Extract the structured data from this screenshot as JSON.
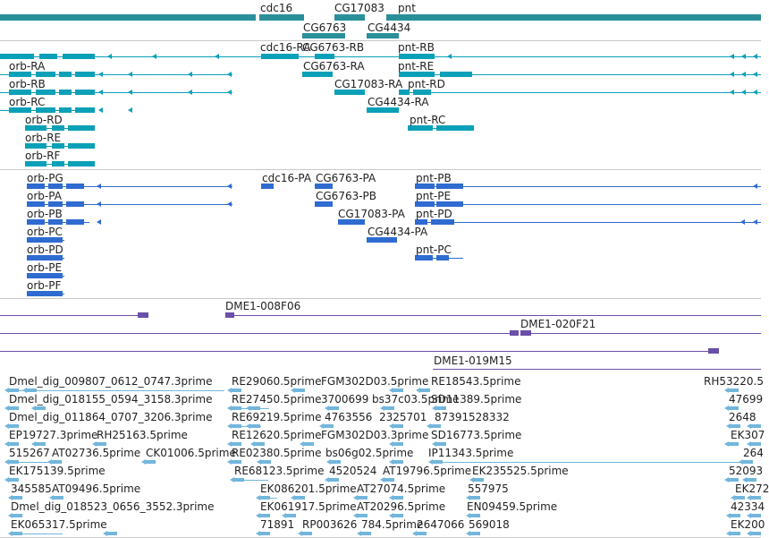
{
  "colors": {
    "gene": "#2a8f99",
    "transcript": "#0aa0b8",
    "protein": "#2f6bd0",
    "clone": "#6a4fa8",
    "est": "#72b6dc",
    "separator": "#c8c8c8"
  },
  "gene_track": {
    "labels": [
      "cdc16",
      "CG17083",
      "pnt",
      "CG6763",
      "CG4434"
    ]
  },
  "transcript_track": {
    "labels": [
      "cdc16-RA",
      "CG6763-RB",
      "pnt-RB",
      "orb-RA",
      "CG6763-RA",
      "pnt-RE",
      "orb-RB",
      "CG17083-RA",
      "pnt-RD",
      "orb-RC",
      "CG4434-RA",
      "orb-RD",
      "pnt-RC",
      "orb-RE",
      "orb-RF"
    ]
  },
  "protein_track": {
    "labels": [
      "orb-PG",
      "cdc16-PA",
      "CG6763-PA",
      "pnt-PB",
      "orb-PA",
      "CG6763-PB",
      "pnt-PE",
      "orb-PB",
      "CG17083-PA",
      "pnt-PD",
      "orb-PC",
      "CG4434-PA",
      "orb-PD",
      "pnt-PC",
      "orb-PE",
      "orb-PF"
    ]
  },
  "clone_track": {
    "labels": [
      "DME1-008F06",
      "DME1-020F21",
      "DME1-019M15"
    ]
  },
  "est_track": {
    "labels": [
      "Dmel_dig_009807_0612_0747.3prime",
      "RE29060.5prime",
      "FGM302D03.5prime",
      "RE18543.5prime",
      "RH53220.5",
      "Dmel_dig_018155_0594_3158.3prime",
      "RE27450.5prime",
      "3700699",
      "bs37c03.5prime",
      "SD11389.5prime",
      "47699",
      "Dmel_dig_011864_0707_3206.3prime",
      "RE69219.5prime",
      "4763556",
      "2325701",
      "87391",
      "528332",
      "2648",
      "EP19727.3prime",
      "RH25163.5prime",
      "RE12620.5prime",
      "FGM302D03.3prime",
      "SD16773.5prime",
      "EK307",
      "515267",
      "AT02736.5prime",
      "CK01006.5prime",
      "RE02380.5prime",
      "bs06g02.5prime",
      "IP11343.5prime",
      "264",
      "EK175139.5prime",
      "RE68123.5prime",
      "4520524",
      "AT19796.5prime",
      "EK235525.5prime",
      "52093",
      "345585",
      "AT09496.5prime",
      "EK086201.5prime",
      "AT27074.5prime",
      "557975",
      "EK272",
      "Dmel_dig_018523_0656_3552.3prime",
      "EK061917.5prime",
      "AT20296.5prime",
      "EN09459.5prime",
      "42334",
      "EK065317.5prime",
      "71891",
      "RP003626",
      "784.5prime",
      "2647066",
      "569018",
      "EK200"
    ]
  }
}
